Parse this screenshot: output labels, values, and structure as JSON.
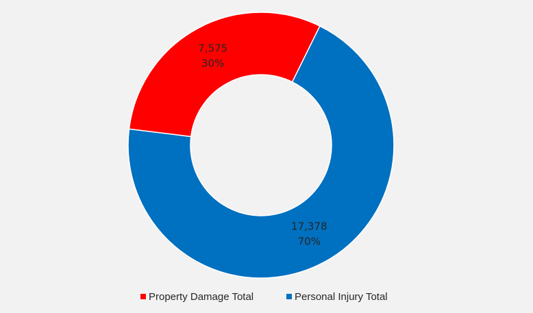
{
  "chart_data": {
    "type": "donut",
    "categories": [
      "Property Damage Total",
      "Personal Injury Total"
    ],
    "values": [
      7575,
      17378
    ],
    "value_labels": [
      "7,575",
      "17,378"
    ],
    "percent_labels": [
      "30%",
      "70%"
    ],
    "colors": [
      "#ff0000",
      "#0070c0"
    ],
    "legend": "bottom"
  }
}
